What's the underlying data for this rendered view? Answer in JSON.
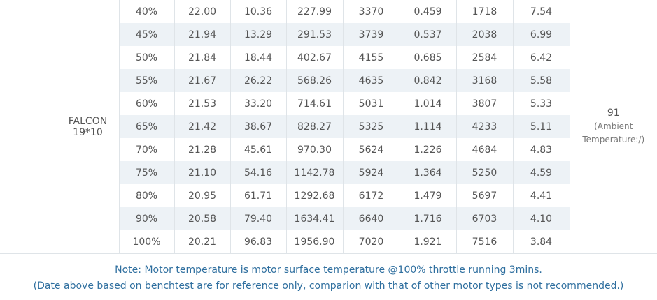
{
  "table": {
    "propeller": [
      "FALCON",
      "19*10"
    ],
    "temperature": {
      "value": "91",
      "note": "(Ambient Temperature:/)"
    },
    "rows": [
      [
        "40%",
        "22.00",
        "10.36",
        "227.99",
        "3370",
        "0.459",
        "1718",
        "7.54"
      ],
      [
        "45%",
        "21.94",
        "13.29",
        "291.53",
        "3739",
        "0.537",
        "2038",
        "6.99"
      ],
      [
        "50%",
        "21.84",
        "18.44",
        "402.67",
        "4155",
        "0.685",
        "2584",
        "6.42"
      ],
      [
        "55%",
        "21.67",
        "26.22",
        "568.26",
        "4635",
        "0.842",
        "3168",
        "5.58"
      ],
      [
        "60%",
        "21.53",
        "33.20",
        "714.61",
        "5031",
        "1.014",
        "3807",
        "5.33"
      ],
      [
        "65%",
        "21.42",
        "38.67",
        "828.27",
        "5325",
        "1.114",
        "4233",
        "5.11"
      ],
      [
        "70%",
        "21.28",
        "45.61",
        "970.30",
        "5624",
        "1.226",
        "4684",
        "4.83"
      ],
      [
        "75%",
        "21.10",
        "54.16",
        "1142.78",
        "5924",
        "1.364",
        "5250",
        "4.59"
      ],
      [
        "80%",
        "20.95",
        "61.71",
        "1292.68",
        "6172",
        "1.479",
        "5697",
        "4.41"
      ],
      [
        "90%",
        "20.58",
        "79.40",
        "1634.41",
        "6640",
        "1.716",
        "6703",
        "4.10"
      ],
      [
        "100%",
        "20.21",
        "96.83",
        "1956.90",
        "7020",
        "1.921",
        "7516",
        "3.84"
      ]
    ]
  },
  "note": {
    "lines": [
      "Note: Motor temperature is motor surface temperature @100% throttle running 3mins.",
      "(Date above based on benchtest are for reference only, comparion with that of other motor types is not recommended.)"
    ]
  }
}
